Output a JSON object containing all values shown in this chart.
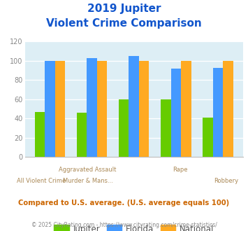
{
  "title_line1": "2019 Jupiter",
  "title_line2": "Violent Crime Comparison",
  "groups": [
    {
      "jupiter": 47,
      "florida": 100,
      "national": 100
    },
    {
      "jupiter": 46,
      "florida": 103,
      "national": 100
    },
    {
      "jupiter": 60,
      "florida": 105,
      "national": 100
    },
    {
      "jupiter": 60,
      "florida": 92,
      "national": 100
    },
    {
      "jupiter": 41,
      "florida": 93,
      "national": 100
    }
  ],
  "x_top_labels": [
    "",
    "Aggravated Assault",
    "",
    "Rape",
    ""
  ],
  "x_bot_labels": [
    "All Violent Crime",
    "Murder & Mans...",
    "",
    "",
    "Robbery"
  ],
  "jupiter_color": "#66cc00",
  "florida_color": "#4499ff",
  "national_color": "#ffaa22",
  "bg_color": "#ddeef5",
  "ylim": [
    0,
    120
  ],
  "yticks": [
    0,
    20,
    40,
    60,
    80,
    100,
    120
  ],
  "title_color": "#1155cc",
  "subtitle_note": "Compared to U.S. average. (U.S. average equals 100)",
  "footer": "© 2025 CityRating.com - https://www.cityrating.com/crime-statistics/",
  "note_color": "#cc6600",
  "footer_color": "#888888",
  "legend_labels": [
    "Jupiter",
    "Florida",
    "National"
  ]
}
